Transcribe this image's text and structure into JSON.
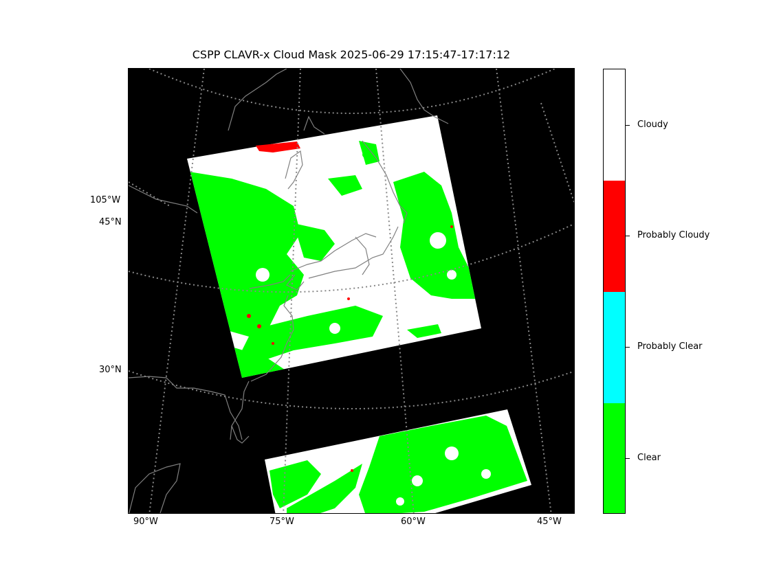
{
  "title": "CSPP CLAVR-x Cloud Mask 2025-06-29 17:15:47-17:17:12",
  "map": {
    "projection": "lambert conformal",
    "background_color": "#000000",
    "coastline_color": "#808080",
    "gridline_color": "#888888",
    "gridline_style": "dotted",
    "left_labels": [
      "105°W",
      "45°N",
      "30°N"
    ],
    "bottom_labels": [
      "90°W",
      "75°W",
      "60°W",
      "45°W"
    ],
    "swaths": [
      {
        "name": "northern-swath",
        "dominant_classes": [
          "Cloudy",
          "Clear"
        ]
      },
      {
        "name": "southern-swath",
        "dominant_classes": [
          "Clear",
          "Cloudy"
        ]
      }
    ]
  },
  "colorbar": {
    "classes": [
      {
        "label": "Cloudy",
        "color": "#ffffff"
      },
      {
        "label": "Probably Cloudy",
        "color": "#ff0000"
      },
      {
        "label": "Probably Clear",
        "color": "#00ffff"
      },
      {
        "label": "Clear",
        "color": "#00ff00"
      }
    ]
  }
}
